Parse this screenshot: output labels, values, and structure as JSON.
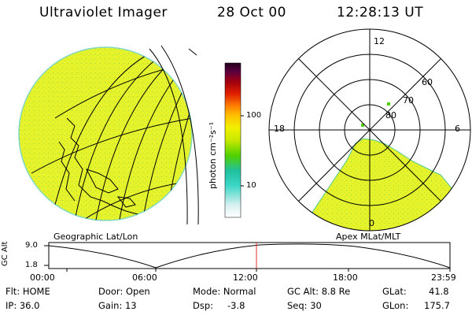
{
  "header": {
    "instrument": "Ultraviolet Imager",
    "date": "28 Oct 00",
    "time": "12:28:13 UT"
  },
  "colorbar": {
    "unit_label": "photon cm⁻²s⁻¹",
    "ticks": [
      "100",
      "10"
    ],
    "scale": "log",
    "colors": [
      "#ffffff",
      "#d8f0f0",
      "#40d8c8",
      "#20c0a0",
      "#50d000",
      "#c8e800",
      "#f0f000",
      "#ffc000",
      "#ff8000",
      "#e02000",
      "#a00010",
      "#600040",
      "#200020"
    ]
  },
  "left_panel": {
    "label": "Geographic Lat/Lon",
    "fill_color": "#e6f32a"
  },
  "right_panel": {
    "label": "Apex MLat/MLT",
    "fill_color": "#e6f32a",
    "mlt_labels": [
      "12",
      "18",
      "6",
      "0"
    ],
    "mlat_labels": [
      "60",
      "70",
      "80"
    ]
  },
  "altitude_strip": {
    "axis_label": "GC Alt",
    "y_ticks": [
      "9.0",
      "1.8"
    ],
    "x_ticks": [
      "00:00",
      "06:00",
      "12:00",
      "18:00",
      "23:59"
    ],
    "current_time_marker": "12:28",
    "marker_color": "#e03030"
  },
  "status": {
    "flt": "Flt: HOME",
    "ip": "IP: 36.0",
    "door": "Door: Open",
    "gain": "Gain: 13",
    "mode": "Mode: Normal",
    "dsp": "Dsp:",
    "dsp_value": "-3.8",
    "gc_alt": "GC Alt: 8.8 Re",
    "seq": "Seq: 30",
    "glat": "GLat:",
    "glat_value": "41.8",
    "glon": "GLon:",
    "glon_value": "175.7"
  }
}
